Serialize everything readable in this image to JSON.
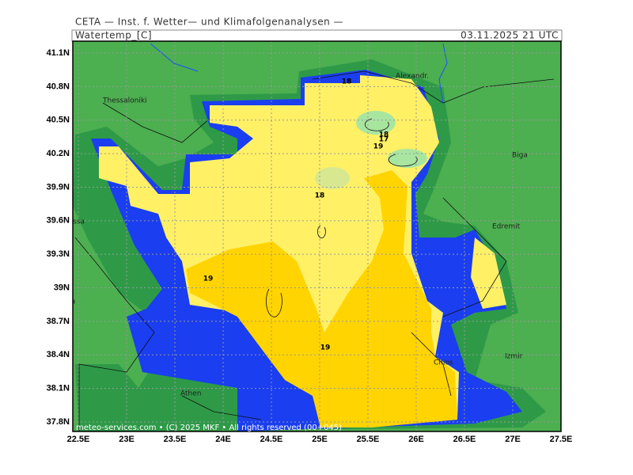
{
  "header": {
    "institute": "CETA — Inst. f. Wetter— und Klimafolgenanalysen —",
    "title": "Watertemp_[C]",
    "date": "03.11.2025 21 UTC",
    "footer": "meteo-services.com • (C) 2025 MKF • All rights reserved (00+045)"
  },
  "map": {
    "lat_ticks": [
      {
        "value": 41.1,
        "label": "41.1N"
      },
      {
        "value": 40.8,
        "label": "40.8N"
      },
      {
        "value": 40.5,
        "label": "40.5N"
      },
      {
        "value": 40.2,
        "label": "40.2N"
      },
      {
        "value": 39.9,
        "label": "39.9N"
      },
      {
        "value": 39.6,
        "label": "39.6N"
      },
      {
        "value": 39.3,
        "label": "39.3N"
      },
      {
        "value": 39,
        "label": "39N"
      },
      {
        "value": 38.7,
        "label": "38.7N"
      },
      {
        "value": 38.4,
        "label": "38.4N"
      },
      {
        "value": 38.1,
        "label": "38.1N"
      },
      {
        "value": 37.8,
        "label": "37.8N"
      }
    ],
    "lon_ticks": [
      {
        "value": 22.5,
        "label": "22.5E"
      },
      {
        "value": 23,
        "label": "23E"
      },
      {
        "value": 23.5,
        "label": "23.5E"
      },
      {
        "value": 24,
        "label": "24E"
      },
      {
        "value": 24.5,
        "label": "24.5E"
      },
      {
        "value": 25,
        "label": "25E"
      },
      {
        "value": 25.5,
        "label": "25.5E"
      },
      {
        "value": 26,
        "label": "26E"
      },
      {
        "value": 26.5,
        "label": "26.5E"
      },
      {
        "value": 27,
        "label": "27E"
      },
      {
        "value": 27.5,
        "label": "27.5E"
      }
    ],
    "places": [
      "Thessaloniki",
      "Alexandr.",
      "Biga",
      "Edremit",
      "ssa",
      "Lamia",
      "Athen",
      "Chios",
      "Izmir"
    ],
    "contour_labels": [
      "18",
      "18",
      "18",
      "17",
      "19",
      "19",
      "19"
    ]
  }
}
